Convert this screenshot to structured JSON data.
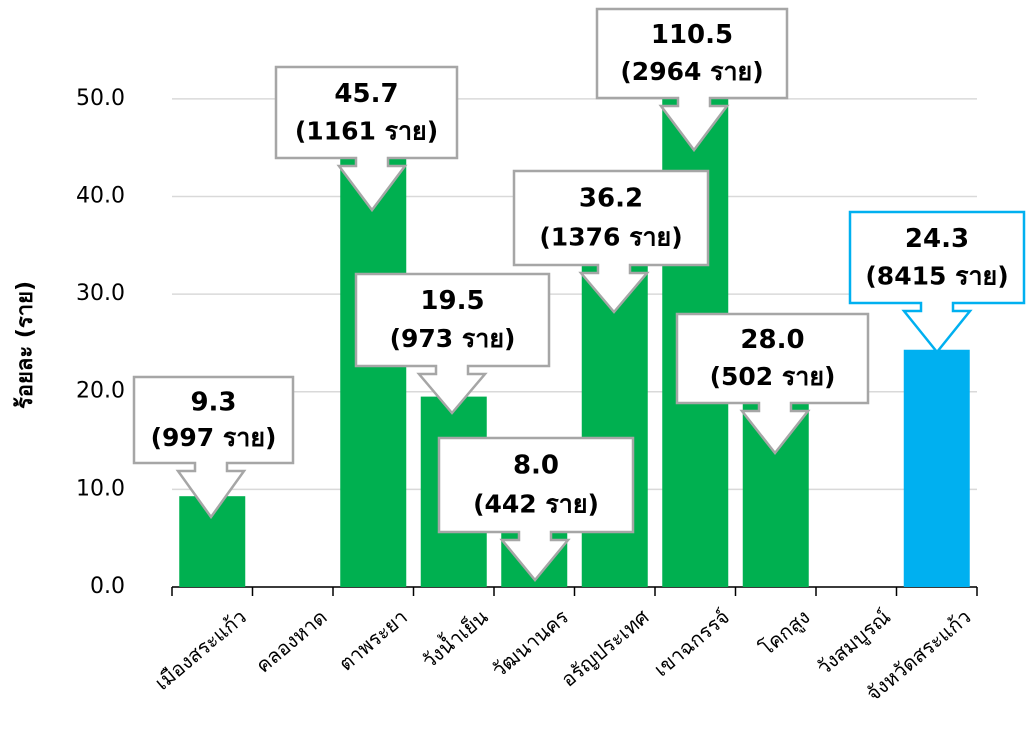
{
  "chart_data": {
    "type": "bar",
    "y_label": "ร้อยละ (ราย)",
    "categories": [
      "เมืองสระแก้ว",
      "คลองหาด",
      "ตาพระยา",
      "วังน้ำเย็น",
      "วัฒนานคร",
      "อรัญประเทศ",
      "เขาฉกรรจ์",
      "โคกสูง",
      "วังสมบูรณ์",
      "จังหวัดสระแก้ว"
    ],
    "values": [
      9.3,
      null,
      45.7,
      19.5,
      8.0,
      36.2,
      110.5,
      28.0,
      null,
      24.3
    ],
    "value_labels": [
      "9.3",
      null,
      "45.7",
      "19.5",
      "8.0",
      "36.2",
      "110.5",
      "28.0",
      null,
      "24.3"
    ],
    "count_labels": [
      "(997 ราย)",
      null,
      "(1161 ราย)",
      "(973 ราย)",
      "(442 ราย)",
      "(1376 ราย)",
      "(2964 ราย)",
      "(502 ราย)",
      null,
      "(8415 ราย)"
    ],
    "colors": [
      "#00b050",
      "#00b050",
      "#00b050",
      "#00b050",
      "#00b050",
      "#00b050",
      "#00b050",
      "#00b050",
      "#00b050",
      "#00b0f0"
    ],
    "ylim": [
      0,
      55
    ],
    "yticks": [
      {
        "value": 0,
        "label": "0.0"
      },
      {
        "value": 10,
        "label": "10.0"
      },
      {
        "value": 20,
        "label": "20.0"
      },
      {
        "value": 30,
        "label": "30.0"
      },
      {
        "value": 40,
        "label": "40.0"
      },
      {
        "value": 50,
        "label": "50.0"
      }
    ],
    "grid": true
  }
}
